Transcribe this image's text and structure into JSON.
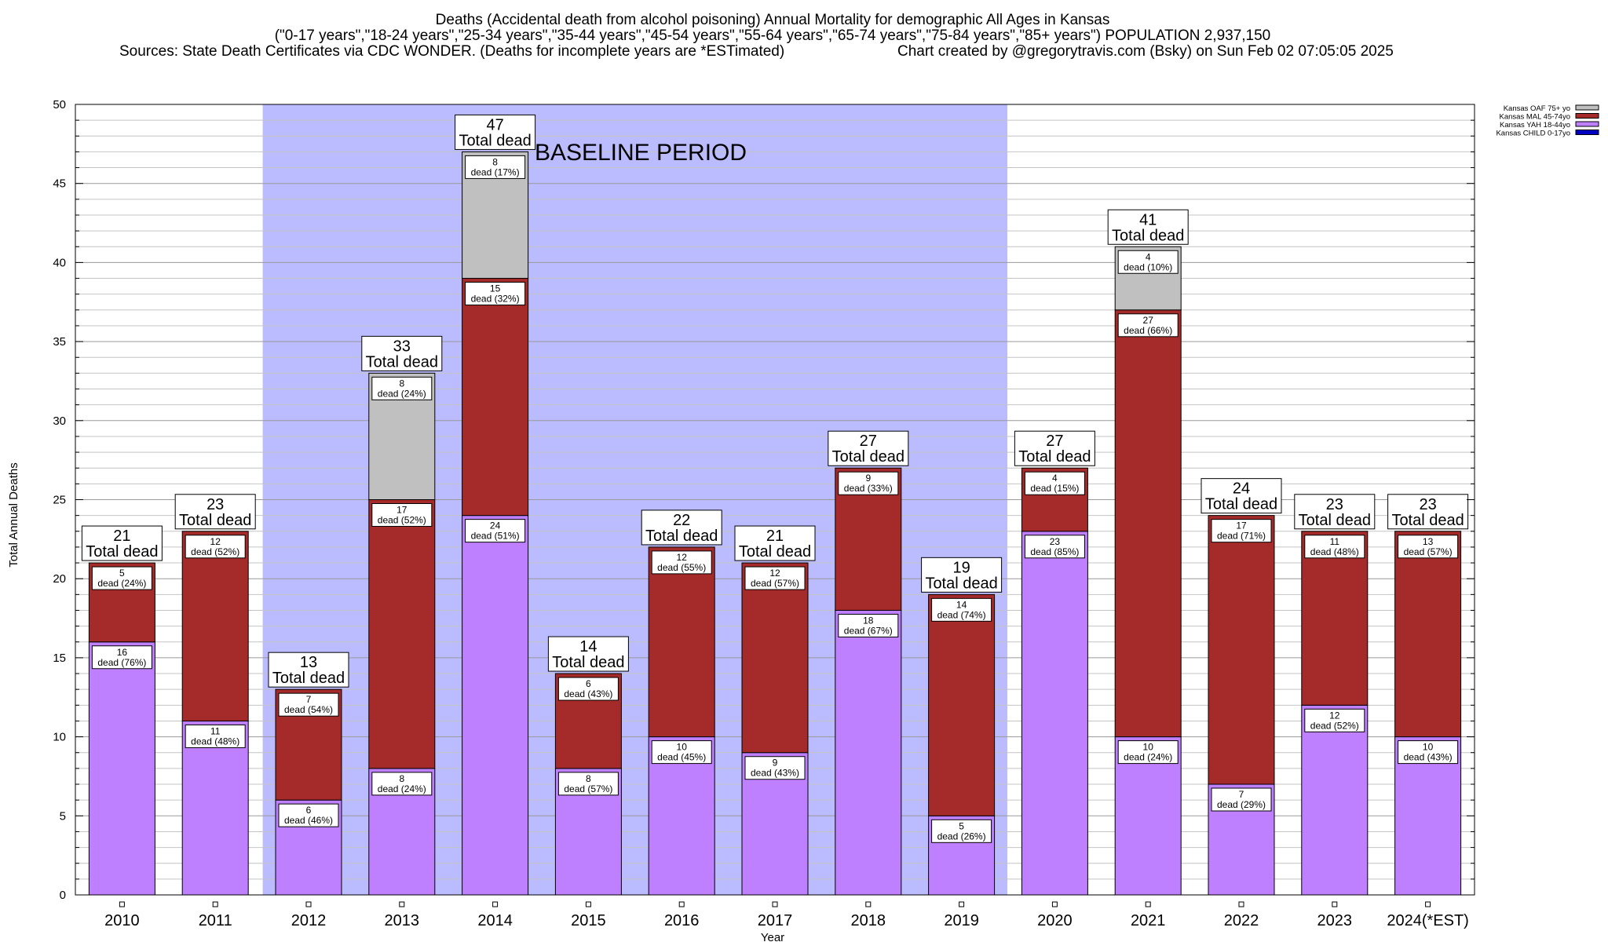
{
  "chart_data": {
    "type": "bar",
    "stacked": true,
    "title": "Deaths (Accidental death from alcohol poisoning) Annual Mortality for demographic All Ages in Kansas",
    "subtitle": "(\"0-17 years\",\"18-24 years\",\"25-34 years\",\"35-44 years\",\"45-54 years\",\"55-64 years\",\"65-74 years\",\"75-84 years\",\"85+ years\") POPULATION 2,937,150",
    "sources": "Sources: State Death Certificates via CDC WONDER. (Deaths for incomplete years are *ESTimated)",
    "credit": "Chart created by @gregorytravis.com (Bsky) on Sun Feb 02 07:05:05 2025",
    "xlabel": "Year",
    "ylabel": "Total Annual Deaths",
    "ylim": [
      0,
      50
    ],
    "yticks": [
      0,
      5,
      10,
      15,
      20,
      25,
      30,
      35,
      40,
      45,
      50
    ],
    "grid": true,
    "legend_position": "top-right",
    "categories": [
      "2010",
      "2011",
      "2012",
      "2013",
      "2014",
      "2015",
      "2016",
      "2017",
      "2018",
      "2019",
      "2020",
      "2021",
      "2022",
      "2023",
      "2024(*EST)"
    ],
    "series": [
      {
        "name": "Kansas CHILD 0-17yo",
        "color": "#0000c0",
        "values": [
          0,
          0,
          0,
          0,
          0,
          0,
          0,
          0,
          0,
          0,
          0,
          0,
          0,
          0,
          0
        ]
      },
      {
        "name": "Kansas YAH 18-44yo",
        "color": "#bf80ff",
        "values": [
          16,
          11,
          6,
          8,
          24,
          8,
          10,
          9,
          18,
          5,
          23,
          10,
          7,
          12,
          10
        ],
        "labels": [
          "(76%)",
          "(48%)",
          "(46%)",
          "(24%)",
          "(51%)",
          "(57%)",
          "(45%)",
          "(43%)",
          "(67%)",
          "(26%)",
          "(85%)",
          "(24%)",
          "(29%)",
          "(52%)",
          "(43%)"
        ]
      },
      {
        "name": "Kansas MAL 45-74yo",
        "color": "#a52a2a",
        "values": [
          5,
          12,
          7,
          17,
          15,
          6,
          12,
          12,
          9,
          14,
          4,
          27,
          17,
          11,
          13
        ],
        "labels": [
          "(24%)",
          "(52%)",
          "(54%)",
          "(52%)",
          "(32%)",
          "(43%)",
          "(55%)",
          "(57%)",
          "(33%)",
          "(74%)",
          "(15%)",
          "(66%)",
          "(71%)",
          "(48%)",
          "(57%)"
        ]
      },
      {
        "name": "Kansas OAF 75+ yo",
        "color": "#c0c0c0",
        "values": [
          0,
          0,
          0,
          8,
          8,
          0,
          0,
          0,
          0,
          0,
          0,
          4,
          0,
          0,
          0
        ],
        "labels": [
          "",
          "",
          "",
          "(24%)",
          "(17%)",
          "",
          "",
          "",
          "",
          "",
          "",
          "(10%)",
          "",
          "",
          ""
        ]
      }
    ],
    "totals": [
      21,
      23,
      13,
      33,
      47,
      14,
      22,
      21,
      27,
      19,
      27,
      41,
      24,
      23,
      23
    ],
    "total_label": "Total dead",
    "segment_label_prefix": "dead",
    "annotation": {
      "text": "BASELINE PERIOD",
      "from": "2012",
      "to": "2019",
      "color": "#bbbbff"
    }
  }
}
